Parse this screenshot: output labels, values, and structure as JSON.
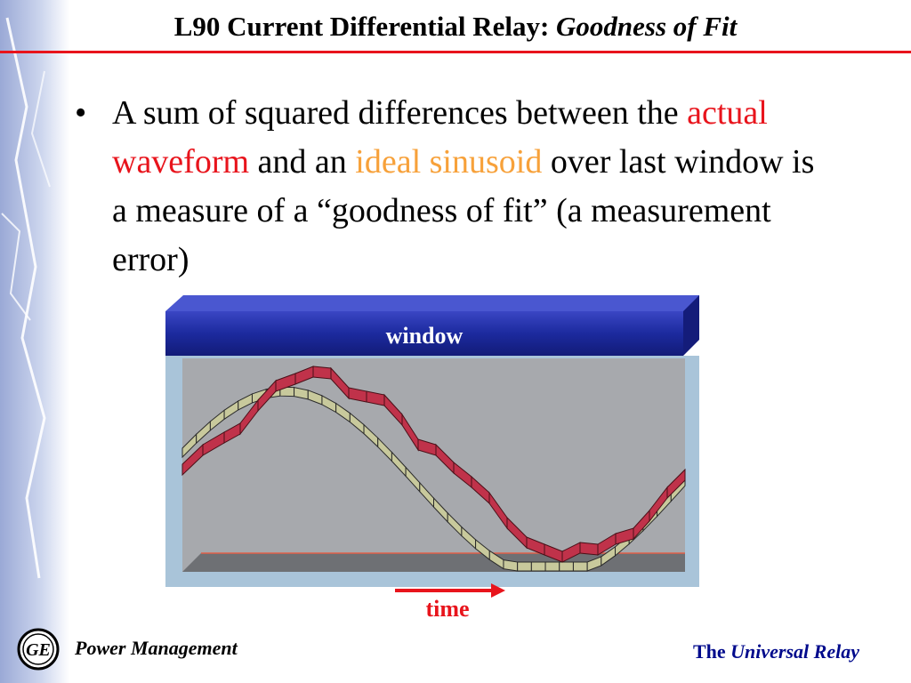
{
  "title": {
    "main": "L90 Current Differential Relay: ",
    "italic": "Goodness of Fit"
  },
  "bullet": {
    "symbol": "•",
    "part1": "A sum of squared differences between the ",
    "actual": "actual waveform",
    "part2": " and an ",
    "ideal": "ideal sinusoid",
    "part3": " over last window is a measure of a “goodness of fit” (a measurement error)"
  },
  "diagram": {
    "window_label": "window",
    "time_label": "time"
  },
  "footer": {
    "left": "Power Management",
    "right_prefix": "The ",
    "right_italic": "Universal Relay"
  },
  "colors": {
    "accent_red": "#e8141c",
    "orange": "#f7a13a",
    "header_blue": "#1c2a9e",
    "actual_fill": "#c0324a",
    "ideal_fill": "#c8c99c"
  },
  "icons": {
    "logo": "ge-monogram-icon",
    "arrow": "arrow-right-icon"
  }
}
